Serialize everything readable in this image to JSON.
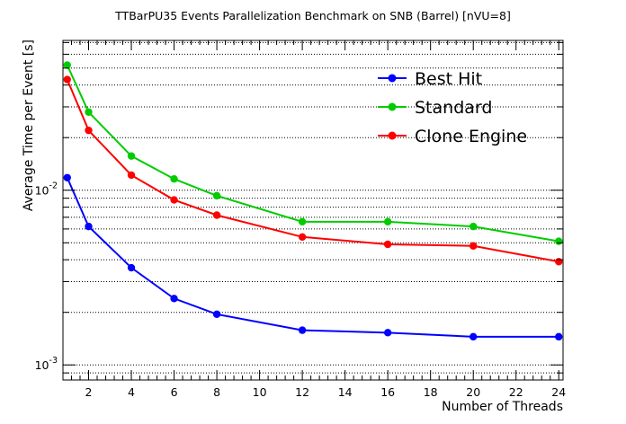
{
  "chart_data": {
    "type": "line",
    "title": "TTBarPU35 Events Parallelization Benchmark on SNB (Barrel) [nVU=8]",
    "xlabel": "Number of Threads",
    "ylabel": "Average Time per Event [s]",
    "x_scale": "linear",
    "y_scale": "log",
    "xlim": [
      0.8,
      24.2
    ],
    "ylim": [
      0.00082,
      0.072
    ],
    "grid": "y-dotted",
    "legend_position": "top-right",
    "x_ticks": [
      2,
      4,
      6,
      8,
      10,
      12,
      14,
      16,
      18,
      20,
      22,
      24
    ],
    "x_tick_labels": [
      "2",
      "4",
      "6",
      "8",
      "10",
      "12",
      "14",
      "16",
      "18",
      "20",
      "22",
      "24"
    ],
    "y_major_ticks": [
      {
        "value": 0.001,
        "base": "10",
        "exponent": "-3"
      },
      {
        "value": 0.01,
        "base": "10",
        "exponent": "-2"
      }
    ],
    "x": [
      1,
      2,
      4,
      6,
      8,
      12,
      16,
      20,
      24
    ],
    "series": [
      {
        "name": "Best Hit",
        "color": "#0000ff",
        "values": [
          0.0118,
          0.0062,
          0.0036,
          0.0024,
          0.00195,
          0.00158,
          0.00153,
          0.00145,
          0.00145
        ]
      },
      {
        "name": "Standard",
        "color": "#00cc00",
        "values": [
          0.052,
          0.028,
          0.0157,
          0.0116,
          0.0093,
          0.0066,
          0.0066,
          0.0062,
          0.0051
        ]
      },
      {
        "name": "Clone Engine",
        "color": "#ff0000",
        "values": [
          0.043,
          0.022,
          0.0122,
          0.0088,
          0.0072,
          0.0054,
          0.0049,
          0.0048,
          0.0039
        ]
      }
    ]
  }
}
